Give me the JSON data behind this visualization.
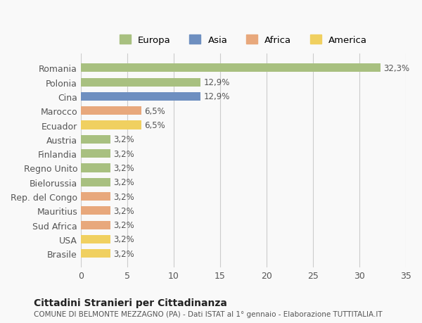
{
  "countries": [
    "Romania",
    "Polonia",
    "Cina",
    "Marocco",
    "Ecuador",
    "Austria",
    "Finlandia",
    "Regno Unito",
    "Bielorussia",
    "Rep. del Congo",
    "Mauritius",
    "Sud Africa",
    "USA",
    "Brasile"
  ],
  "values": [
    32.3,
    12.9,
    12.9,
    6.5,
    6.5,
    3.2,
    3.2,
    3.2,
    3.2,
    3.2,
    3.2,
    3.2,
    3.2,
    3.2
  ],
  "labels": [
    "32,3%",
    "12,9%",
    "12,9%",
    "6,5%",
    "6,5%",
    "3,2%",
    "3,2%",
    "3,2%",
    "3,2%",
    "3,2%",
    "3,2%",
    "3,2%",
    "3,2%",
    "3,2%"
  ],
  "colors": [
    "#a8c080",
    "#a8c080",
    "#6e8fc0",
    "#e8a87c",
    "#f0d060",
    "#a8c080",
    "#a8c080",
    "#a8c080",
    "#a8c080",
    "#e8a87c",
    "#e8a87c",
    "#e8a87c",
    "#f0d060",
    "#f0d060"
  ],
  "continent_labels": [
    "Europa",
    "Asia",
    "Africa",
    "America"
  ],
  "continent_colors": [
    "#a8c080",
    "#6e8fc0",
    "#e8a87c",
    "#f0d060"
  ],
  "title_bold": "Cittadini Stranieri per Cittadinanza",
  "title_sub": "COMUNE DI BELMONTE MEZZAGNO (PA) - Dati ISTAT al 1° gennaio - Elaborazione TUTTITALIA.IT",
  "xlim": [
    0,
    35
  ],
  "xticks": [
    0,
    5,
    10,
    15,
    20,
    25,
    30,
    35
  ],
  "background_color": "#f9f9f9",
  "grid_color": "#cccccc"
}
